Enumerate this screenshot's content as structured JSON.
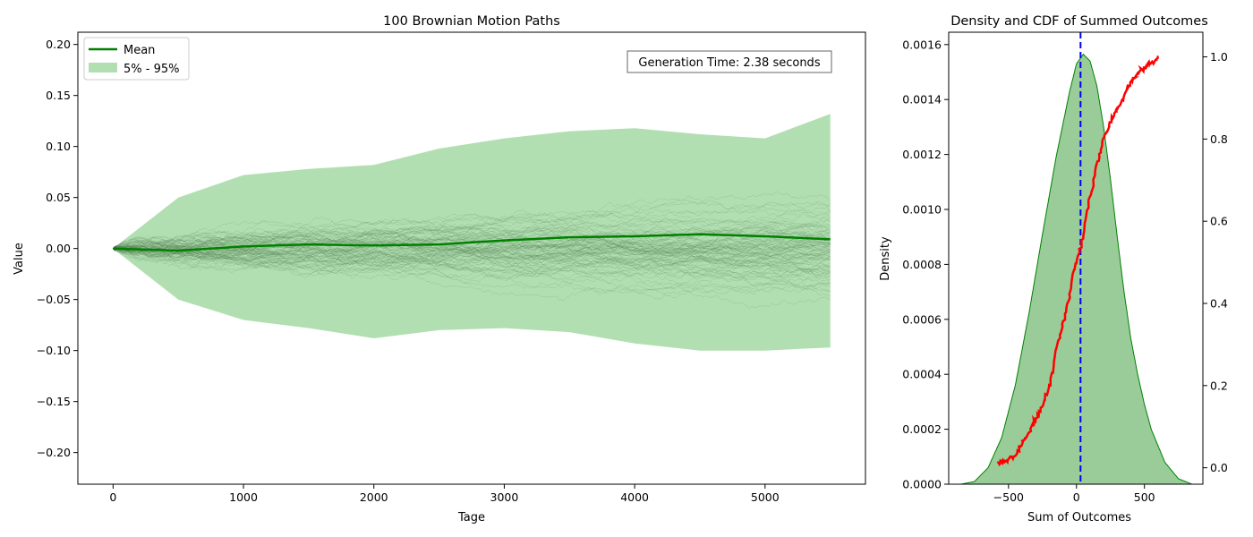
{
  "chart_data": [
    {
      "type": "line",
      "title": "100 Brownian Motion Paths",
      "xlabel": "Tage",
      "ylabel": "Value",
      "xlim": [
        -270,
        5770
      ],
      "ylim": [
        -0.231,
        0.212
      ],
      "x_ticks": [
        0,
        1000,
        2000,
        3000,
        4000,
        5000
      ],
      "x_tick_labels": [
        "0",
        "1000",
        "2000",
        "3000",
        "4000",
        "5000"
      ],
      "y_ticks": [
        -0.2,
        -0.15,
        -0.1,
        -0.05,
        0.0,
        0.05,
        0.1,
        0.15,
        0.2
      ],
      "y_tick_labels": [
        "−0.20",
        "−0.15",
        "−0.10",
        "−0.05",
        "0.00",
        "0.05",
        "0.10",
        "0.15",
        "0.20"
      ],
      "legend": {
        "placement": "upper-left",
        "entries": [
          {
            "label": "Mean",
            "kind": "line",
            "color": "#008000"
          },
          {
            "label": "5% - 95%",
            "kind": "patch",
            "color": "#7fc97f"
          }
        ]
      },
      "annotation": "Generation Time: 2.38 seconds",
      "n_paths": 100,
      "path_color": "#000000",
      "mean": {
        "name": "Mean",
        "color": "#008000",
        "x": [
          0,
          500,
          1000,
          1500,
          2000,
          2500,
          3000,
          3500,
          4000,
          4500,
          5000,
          5500
        ],
        "y": [
          0.0,
          -0.002,
          0.002,
          0.004,
          0.003,
          0.004,
          0.008,
          0.011,
          0.012,
          0.014,
          0.012,
          0.009
        ]
      },
      "band": {
        "name": "5% - 95%",
        "color": "#7fc97f",
        "x": [
          0,
          500,
          1000,
          1500,
          2000,
          2500,
          3000,
          3500,
          4000,
          4500,
          5000,
          5500
        ],
        "lower": [
          0.0,
          -0.05,
          -0.07,
          -0.078,
          -0.088,
          -0.08,
          -0.078,
          -0.082,
          -0.093,
          -0.1,
          -0.1,
          -0.097
        ],
        "upper": [
          0.0,
          0.05,
          0.072,
          0.078,
          0.082,
          0.098,
          0.108,
          0.115,
          0.118,
          0.112,
          0.108,
          0.132
        ]
      }
    },
    {
      "type": "area",
      "title": "Density and CDF of Summed Outcomes",
      "xlabel": "Sum of Outcomes",
      "ylabel": "Density",
      "xlim": [
        -940,
        930
      ],
      "ylim": [
        0,
        0.001645
      ],
      "y2lim": [
        -0.04,
        1.06
      ],
      "x_ticks": [
        -500,
        0,
        500
      ],
      "x_tick_labels": [
        "−500",
        "0",
        "500"
      ],
      "y_ticks": [
        0,
        0.0002,
        0.0004,
        0.0006,
        0.0008,
        0.001,
        0.0012,
        0.0014,
        0.0016
      ],
      "y_tick_labels": [
        "0.0000",
        "0.0002",
        "0.0004",
        "0.0006",
        "0.0008",
        "0.0010",
        "0.0012",
        "0.0014",
        "0.0016"
      ],
      "y2_ticks": [
        0,
        0.2,
        0.4,
        0.6,
        0.8,
        1.0
      ],
      "y2_tick_labels": [
        "0.0",
        "0.2",
        "0.4",
        "0.6",
        "0.8",
        "1.0"
      ],
      "mean_line": {
        "x": 30,
        "color": "#0000ff",
        "style": "dashed"
      },
      "density": {
        "color": "#008000",
        "fill": "#99cc99",
        "x": [
          -850,
          -750,
          -650,
          -550,
          -450,
          -350,
          -250,
          -150,
          -50,
          0,
          50,
          100,
          150,
          200,
          250,
          300,
          350,
          400,
          450,
          500,
          550,
          650,
          750,
          850
        ],
        "y": [
          0.0,
          1e-05,
          6e-05,
          0.00017,
          0.00036,
          0.00062,
          0.00091,
          0.00119,
          0.00143,
          0.00153,
          0.001565,
          0.00154,
          0.00145,
          0.0013,
          0.00111,
          0.0009,
          0.0007,
          0.00053,
          0.0004,
          0.00029,
          0.0002,
          8e-05,
          2e-05,
          0.0
        ]
      },
      "cdf": {
        "color": "#ff0000",
        "x": [
          -580,
          -500,
          -450,
          -380,
          -300,
          -250,
          -200,
          -150,
          -100,
          -60,
          -20,
          0,
          20,
          50,
          80,
          110,
          150,
          200,
          260,
          320,
          380,
          450,
          520,
          610
        ],
        "y": [
          0.01,
          0.02,
          0.03,
          0.07,
          0.12,
          0.15,
          0.2,
          0.28,
          0.35,
          0.4,
          0.47,
          0.5,
          0.52,
          0.57,
          0.63,
          0.67,
          0.74,
          0.8,
          0.85,
          0.88,
          0.93,
          0.96,
          0.98,
          1.0
        ]
      }
    }
  ]
}
